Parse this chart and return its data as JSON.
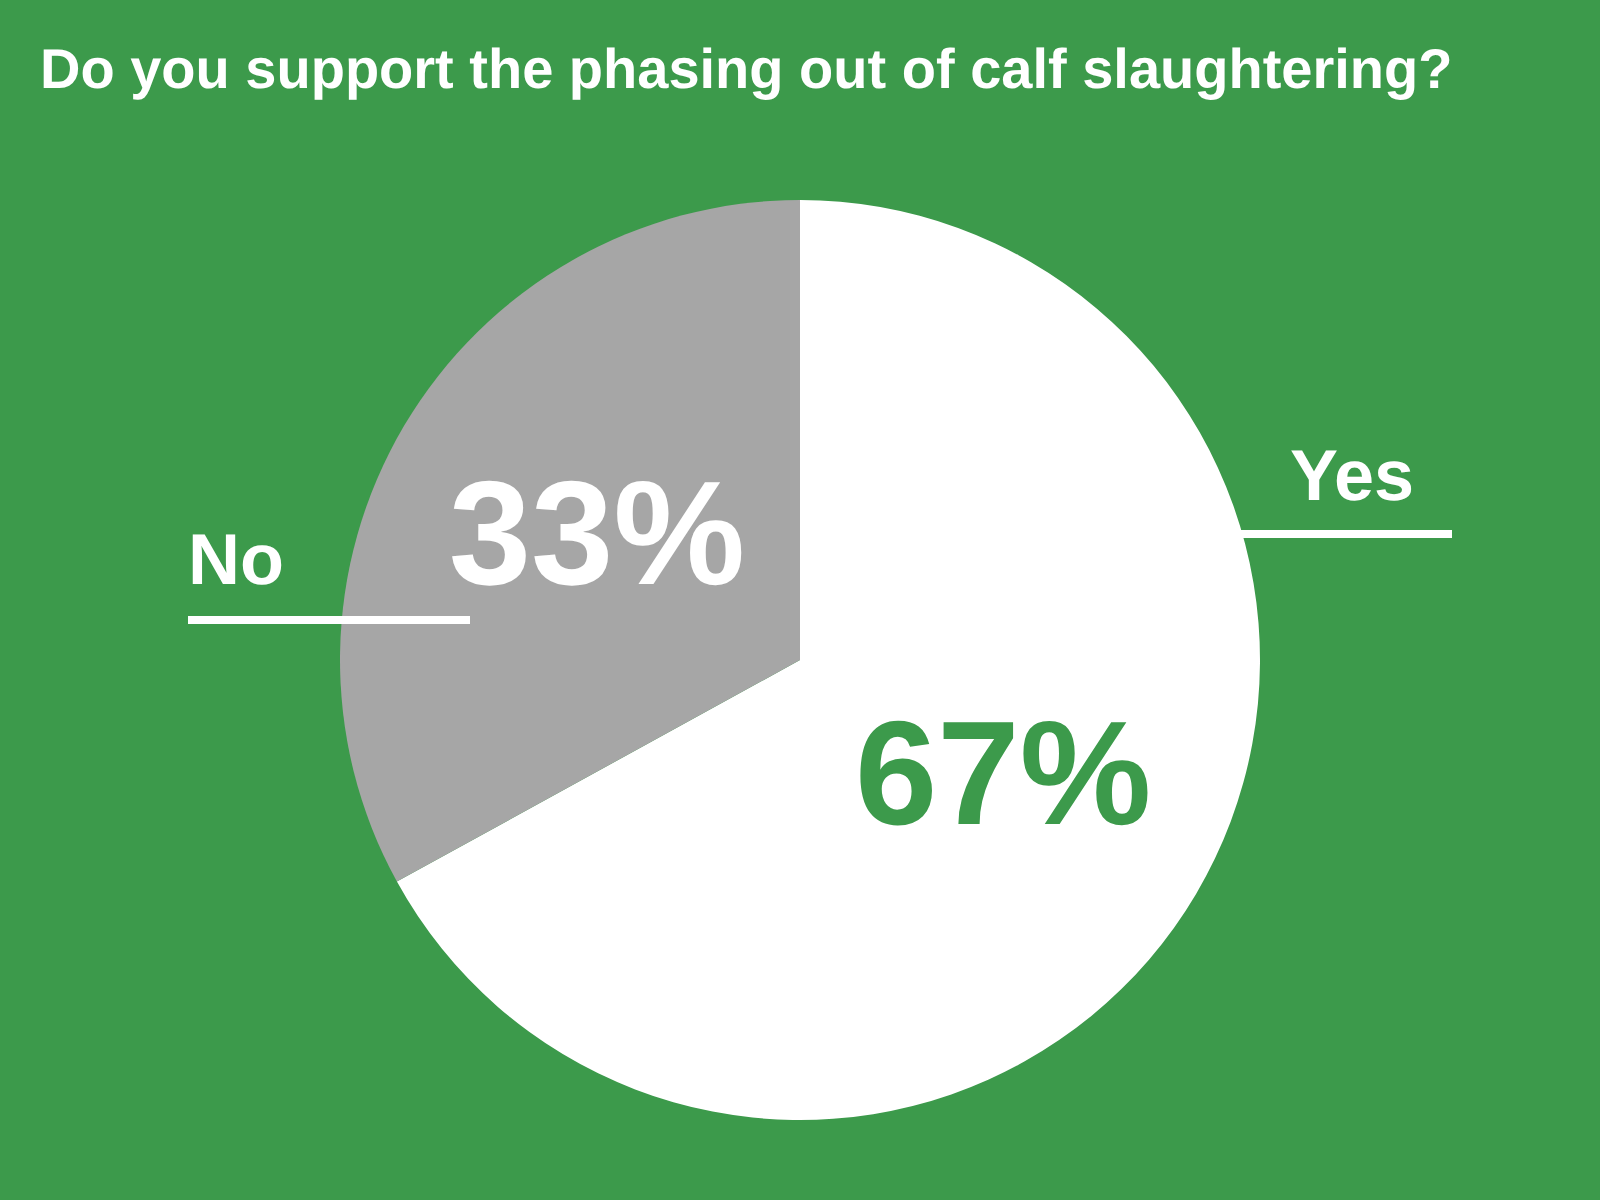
{
  "chart_data": {
    "type": "pie",
    "title": "Do you support the phasing out of calf slaughtering?",
    "categories": [
      "Yes",
      "No"
    ],
    "values": [
      67,
      33
    ],
    "colors": [
      "#ffffff",
      "#a6a6a6"
    ],
    "value_labels": [
      "67%",
      "33%"
    ]
  }
}
